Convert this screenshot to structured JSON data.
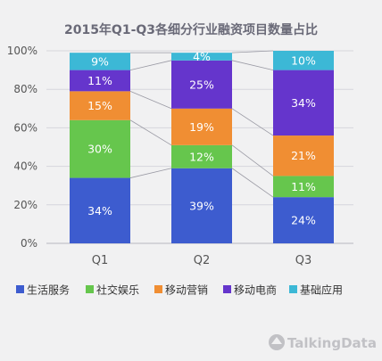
{
  "chart_data": {
    "type": "bar",
    "stacked": true,
    "title": "2015年Q1-Q3各细分行业融资项目数量占比",
    "categories": [
      "Q1",
      "Q2",
      "Q3"
    ],
    "ylim": [
      0,
      100
    ],
    "yticks": [
      "0%",
      "20%",
      "40%",
      "60%",
      "80%",
      "100%"
    ],
    "grid": true,
    "legend_position": "bottom",
    "series": [
      {
        "name": "生活服务",
        "color": "#3d5ccf",
        "values": [
          34,
          39,
          24
        ]
      },
      {
        "name": "社交娱乐",
        "color": "#66c64d",
        "values": [
          30,
          12,
          11
        ]
      },
      {
        "name": "移动营销",
        "color": "#f08e33",
        "values": [
          15,
          19,
          21
        ]
      },
      {
        "name": "移动电商",
        "color": "#6535cc",
        "values": [
          11,
          25,
          34
        ]
      },
      {
        "name": "基础应用",
        "color": "#3cb8d6",
        "values": [
          9,
          4,
          10
        ]
      }
    ],
    "value_suffix": "%"
  },
  "watermark": {
    "text": "TalkingData",
    "icon": "talkingdata-logo-icon"
  }
}
